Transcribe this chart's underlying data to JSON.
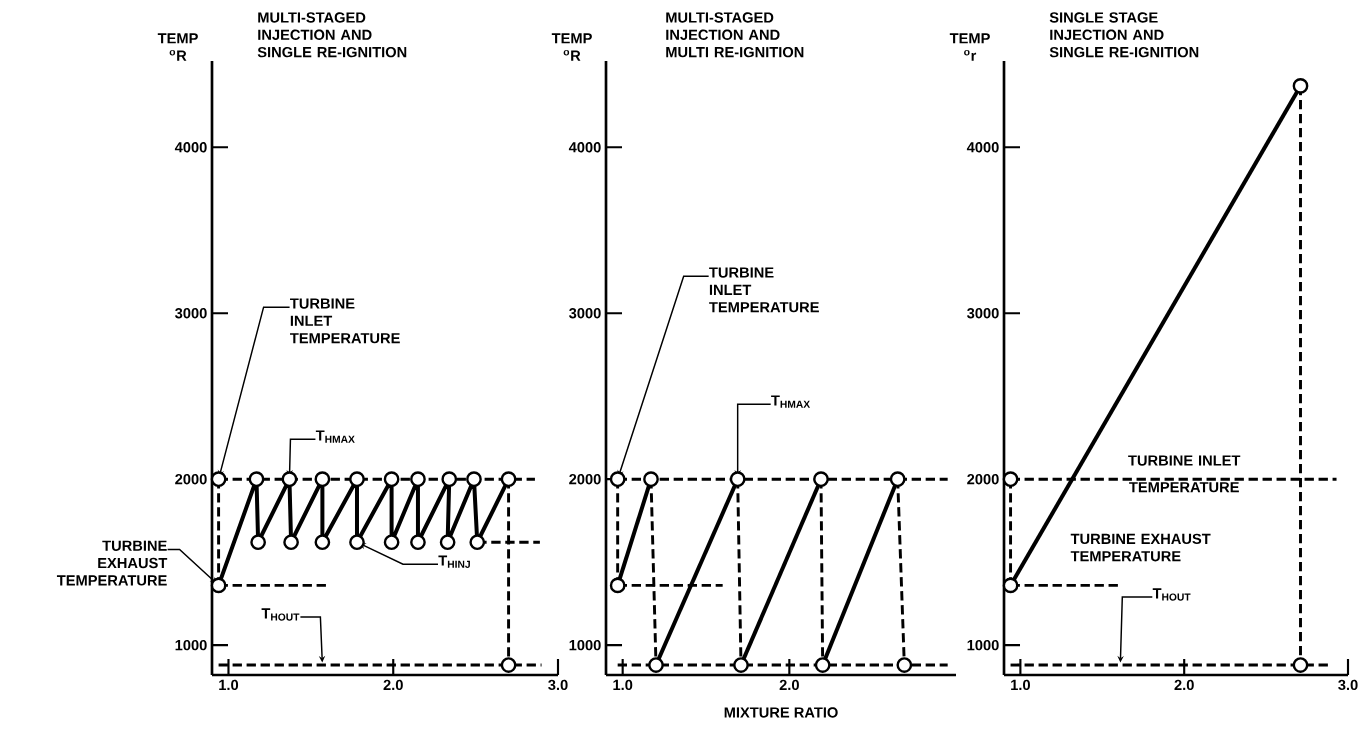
{
  "chart_data": [
    {
      "type": "line",
      "title": "MULTI-STAGED INJECTION AND SINGLE RE-IGNITION",
      "ylabel": "TEMP $^{o}$R",
      "xlim": [
        0.9,
        3.0
      ],
      "ylim": [
        820,
        4520
      ],
      "xticks": [
        {
          "value": 1,
          "label": "1.0"
        },
        {
          "value": 2,
          "label": "2.0"
        },
        {
          "value": 3,
          "label": "3.0"
        }
      ],
      "yticks": [
        1000,
        2000,
        3000,
        4000
      ],
      "series": [
        {
          "x": [
            0.94,
            0.94
          ],
          "values": [
            2000,
            1360
          ],
          "color": "#000000",
          "line_style": "dashed"
        },
        {
          "x": [
            0.94,
            2.86
          ],
          "values": [
            2000,
            2000
          ],
          "color": "#000000",
          "line_style": "dashed"
        },
        {
          "x": [
            0.94,
            1.6
          ],
          "values": [
            1360,
            1360
          ],
          "color": "#000000",
          "line_style": "dashed"
        },
        {
          "x": [
            2.51,
            2.89
          ],
          "values": [
            1620,
            1620
          ],
          "color": "#000000",
          "line_style": "dashed"
        },
        {
          "x": [
            2.7,
            2.7
          ],
          "values": [
            2000,
            880
          ],
          "color": "#000000",
          "line_style": "dashed"
        },
        {
          "x": [
            0.94,
            2.9
          ],
          "values": [
            880,
            880
          ],
          "color": "#000000",
          "line_style": "dashed"
        },
        {
          "x": [
            0.94,
            1.17,
            1.18,
            1.37,
            1.38,
            1.57,
            1.57,
            1.78,
            1.78,
            1.99,
            1.99,
            2.15,
            2.15,
            2.34,
            2.33,
            2.49,
            2.51,
            2.7
          ],
          "values": [
            1360,
            2000,
            1620,
            2000,
            1620,
            2000,
            1620,
            2000,
            1620,
            2000,
            1620,
            2000,
            1620,
            2000,
            1620,
            2000,
            1620,
            2000
          ],
          "color": "#000000",
          "line_style": "solid"
        },
        {
          "type": "scatter",
          "x": [
            0.94,
            0.94,
            1.17,
            1.37,
            1.57,
            1.78,
            1.99,
            2.15,
            2.34,
            2.49,
            2.7,
            1.18,
            1.38,
            1.57,
            1.78,
            1.99,
            2.15,
            2.33,
            2.51,
            2.7
          ],
          "values": [
            2000,
            1360,
            2000,
            2000,
            2000,
            2000,
            2000,
            2000,
            2000,
            2000,
            2000,
            1620,
            1620,
            1620,
            1620,
            1620,
            1620,
            1620,
            1620,
            880
          ],
          "color": "#000000",
          "marker": "circle"
        }
      ],
      "annotations": [
        {
          "text": "TURBINE INLET TEMPERATURE",
          "x": 0.94,
          "y": 2000
        },
        {
          "text": "T$_{HMAX}$",
          "x": 1.37,
          "y": 2000
        },
        {
          "text": "TURBINE EXHAUST TEMPERATURE",
          "x": 0.94,
          "y": 1360
        },
        {
          "text": "T$_{HINJ}$",
          "x": 1.78,
          "y": 1620
        },
        {
          "text": "T$_{HOUT}$",
          "x": 1.57,
          "y": 880
        }
      ]
    },
    {
      "type": "line",
      "title": "MULTI-STAGED INJECTION AND MULTI RE-IGNITION",
      "ylabel": "TEMP $^{o}$R",
      "xlabel": "MIXTURE RATIO",
      "xlim": [
        0.9,
        3.0
      ],
      "ylim": [
        820,
        4520
      ],
      "xticks": [
        {
          "value": 1,
          "label": "1.0"
        },
        {
          "value": 2,
          "label": "2.0"
        }
      ],
      "yticks": [
        1000,
        2000,
        3000,
        4000
      ],
      "series": [
        {
          "x": [
            0.97,
            0.97
          ],
          "values": [
            2000,
            1360
          ],
          "color": "#000000",
          "line_style": "dashed"
        },
        {
          "x": [
            0.97,
            2.95
          ],
          "values": [
            2000,
            2000
          ],
          "color": "#000000",
          "line_style": "dashed"
        },
        {
          "x": [
            0.97,
            1.6
          ],
          "values": [
            1360,
            1360
          ],
          "color": "#000000",
          "line_style": "dashed"
        },
        {
          "x": [
            0.97,
            2.95
          ],
          "values": [
            880,
            880
          ],
          "color": "#000000",
          "line_style": "dashed"
        },
        {
          "x": [
            1.17,
            1.2
          ],
          "values": [
            2000,
            880
          ],
          "color": "#000000",
          "line_style": "dashed"
        },
        {
          "x": [
            1.69,
            1.71
          ],
          "values": [
            2000,
            880
          ],
          "color": "#000000",
          "line_style": "dashed"
        },
        {
          "x": [
            2.19,
            2.2
          ],
          "values": [
            2000,
            880
          ],
          "color": "#000000",
          "line_style": "dashed"
        },
        {
          "x": [
            2.65,
            2.69
          ],
          "values": [
            2000,
            880
          ],
          "color": "#000000",
          "line_style": "dashed"
        },
        {
          "x": [
            0.97,
            1.17
          ],
          "values": [
            1360,
            2000
          ],
          "color": "#000000",
          "line_style": "solid"
        },
        {
          "x": [
            1.2,
            1.69
          ],
          "values": [
            880,
            2000
          ],
          "color": "#000000",
          "line_style": "solid"
        },
        {
          "x": [
            1.71,
            2.19
          ],
          "values": [
            880,
            2000
          ],
          "color": "#000000",
          "line_style": "solid"
        },
        {
          "x": [
            2.2,
            2.65
          ],
          "values": [
            880,
            2000
          ],
          "color": "#000000",
          "line_style": "solid"
        },
        {
          "type": "scatter",
          "x": [
            0.97,
            0.97,
            1.17,
            1.69,
            2.19,
            2.65,
            1.2,
            1.71,
            2.2,
            2.69
          ],
          "values": [
            2000,
            1360,
            2000,
            2000,
            2000,
            2000,
            880,
            880,
            880,
            880
          ],
          "color": "#000000",
          "marker": "circle"
        }
      ],
      "annotations": [
        {
          "text": "TURBINE INLET TEMPERATURE",
          "x": 0.97,
          "y": 2000
        },
        {
          "text": "T$_{HMAX}$",
          "x": 1.69,
          "y": 2000
        }
      ]
    },
    {
      "type": "line",
      "title": "SINGLE STAGE INJECTION AND SINGLE RE-IGNITION",
      "ylabel": "TEMP $^{o}$r",
      "xlim": [
        0.9,
        3.0
      ],
      "ylim": [
        820,
        4520
      ],
      "xticks": [
        {
          "value": 1,
          "label": "1.0"
        },
        {
          "value": 2,
          "label": "2.0"
        },
        {
          "value": 3,
          "label": "3.0"
        }
      ],
      "yticks": [
        1000,
        2000,
        3000,
        4000
      ],
      "series": [
        {
          "x": [
            0.94,
            0.94
          ],
          "values": [
            2000,
            1360
          ],
          "color": "#000000",
          "line_style": "dashed"
        },
        {
          "x": [
            0.94,
            2.93
          ],
          "values": [
            2000,
            2000
          ],
          "color": "#000000",
          "line_style": "dashed"
        },
        {
          "x": [
            0.94,
            1.61
          ],
          "values": [
            1360,
            1360
          ],
          "color": "#000000",
          "line_style": "dashed"
        },
        {
          "x": [
            2.71,
            2.71
          ],
          "values": [
            4370,
            880
          ],
          "color": "#000000",
          "line_style": "dashed"
        },
        {
          "x": [
            0.94,
            2.9
          ],
          "values": [
            880,
            880
          ],
          "color": "#000000",
          "line_style": "dashed"
        },
        {
          "x": [
            0.94,
            2.71
          ],
          "values": [
            1360,
            4370
          ],
          "color": "#000000",
          "line_style": "solid"
        },
        {
          "type": "scatter",
          "x": [
            0.94,
            0.94,
            2.71,
            2.71
          ],
          "values": [
            2000,
            1360,
            4370,
            880
          ],
          "color": "#000000",
          "marker": "circle"
        }
      ],
      "annotations": [
        {
          "text": "TURBINE INLET TEMPERATURE",
          "x": 2.0,
          "y": 2000
        },
        {
          "text": "TURBINE EXHAUST TEMPERATURE",
          "x": 1.61,
          "y": 1360
        },
        {
          "text": "T$_{HOUT}$",
          "x": 1.61,
          "y": 880
        }
      ]
    }
  ]
}
